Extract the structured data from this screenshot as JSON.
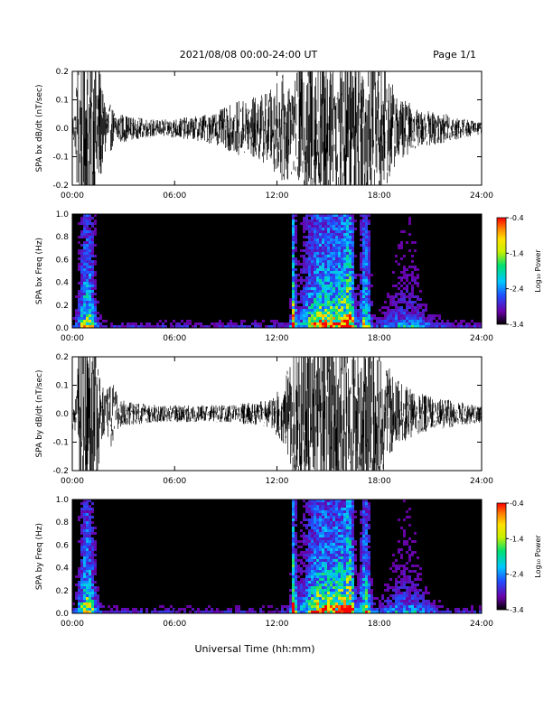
{
  "header": {
    "title": "2021/08/08  00:00-24:00 UT",
    "page": "Page 1/1"
  },
  "footer": {
    "xlabel": "Universal Time (hh:mm)"
  },
  "colors": {
    "trace": "#000000",
    "spectrogram_bg": "#000000",
    "colorscale": [
      "#000000",
      "#6a00a8",
      "#1f4fff",
      "#00c8ff",
      "#00e070",
      "#c8f000",
      "#ffe000",
      "#ff8000",
      "#ff0000"
    ]
  },
  "chart_data": [
    {
      "id": "bx-timeseries",
      "type": "line",
      "ylabel": "SPA bx dB/dt (nT/sec)",
      "xlim": [
        0,
        24
      ],
      "ylim": [
        -0.2,
        0.2
      ],
      "x_ticks": [
        "00:00",
        "06:00",
        "12:00",
        "18:00",
        "24:00"
      ],
      "y_ticks": [
        "-0.2",
        "-0.1",
        "0.0",
        "0.1",
        "0.2"
      ],
      "envelope": {
        "hours": [
          0,
          0.2,
          0.3,
          0.5,
          1.0,
          1.5,
          1.8,
          2.5,
          3.5,
          5,
          7,
          8.5,
          9.5,
          10.5,
          11.5,
          12.2,
          12.5,
          13,
          13.5,
          14,
          15,
          16,
          17,
          17.5,
          18,
          18.5,
          19,
          19.5,
          20,
          20.5,
          21,
          22,
          23,
          24
        ],
        "amplitude": [
          0.05,
          0.08,
          0.3,
          0.3,
          0.3,
          0.3,
          0.12,
          0.06,
          0.04,
          0.03,
          0.04,
          0.06,
          0.09,
          0.11,
          0.13,
          0.18,
          0.2,
          0.15,
          0.3,
          0.3,
          0.3,
          0.3,
          0.3,
          0.3,
          0.25,
          0.2,
          0.12,
          0.1,
          0.08,
          0.06,
          0.06,
          0.05,
          0.035,
          0.02
        ]
      }
    },
    {
      "id": "bx-spectrogram",
      "type": "heatmap",
      "ylabel": "SPA bx Freq (Hz)",
      "xlim": [
        0,
        24
      ],
      "ylim": [
        0,
        1
      ],
      "x_ticks": [
        "00:00",
        "06:00",
        "12:00",
        "18:00",
        "24:00"
      ],
      "y_ticks": [
        "0.0",
        "0.2",
        "0.4",
        "0.6",
        "0.8",
        "1.0"
      ],
      "colorbar": {
        "label": "Log₁₀ Power",
        "range": [
          -3.4,
          -0.4
        ],
        "ticks": [
          "-0.4",
          "-1.4",
          "-2.4",
          "-3.4"
        ]
      }
    },
    {
      "id": "by-timeseries",
      "type": "line",
      "ylabel": "SPA by dB/dt (nT/sec)",
      "xlim": [
        0,
        24
      ],
      "ylim": [
        -0.2,
        0.2
      ],
      "x_ticks": [
        "00:00",
        "06:00",
        "12:00",
        "18:00",
        "24:00"
      ],
      "y_ticks": [
        "-0.2",
        "-0.1",
        "0.0",
        "0.1",
        "0.2"
      ],
      "envelope": {
        "hours": [
          0,
          0.2,
          0.4,
          0.6,
          1.0,
          1.4,
          1.6,
          2.0,
          2.3,
          2.8,
          3.5,
          5,
          7,
          9,
          10.5,
          11.5,
          12.3,
          12.8,
          13.5,
          14.5,
          15.5,
          16.5,
          17.5,
          18.5,
          19,
          19.5,
          20,
          21,
          22,
          23,
          24
        ],
        "amplitude": [
          0.06,
          0.06,
          0.25,
          0.3,
          0.3,
          0.3,
          0.15,
          0.08,
          0.12,
          0.05,
          0.04,
          0.03,
          0.03,
          0.03,
          0.04,
          0.05,
          0.1,
          0.2,
          0.3,
          0.3,
          0.3,
          0.3,
          0.3,
          0.18,
          0.12,
          0.1,
          0.08,
          0.06,
          0.05,
          0.04,
          0.03
        ]
      }
    },
    {
      "id": "by-spectrogram",
      "type": "heatmap",
      "ylabel": "SPA by Freq (Hz)",
      "xlim": [
        0,
        24
      ],
      "ylim": [
        0,
        1
      ],
      "x_ticks": [
        "00:00",
        "06:00",
        "12:00",
        "18:00",
        "24:00"
      ],
      "y_ticks": [
        "0.0",
        "0.2",
        "0.4",
        "0.6",
        "0.8",
        "1.0"
      ],
      "colorbar": {
        "label": "Log₁₀ Power",
        "range": [
          -3.4,
          -0.4
        ],
        "ticks": [
          "-0.4",
          "-1.4",
          "-2.4",
          "-3.4"
        ]
      }
    }
  ]
}
